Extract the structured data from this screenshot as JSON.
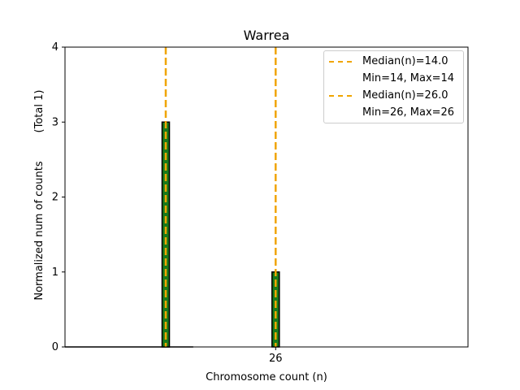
{
  "chart_data": {
    "type": "bar",
    "title": "Warrea",
    "xlabel": "Chromosome count (n)",
    "ylabel": "Normalized num of counts",
    "ylabel_note": "(Total 1)",
    "ylim": [
      0,
      4
    ],
    "xlim": [
      3,
      47
    ],
    "yticks": [
      0,
      1,
      2,
      3,
      4
    ],
    "xticks": [
      26
    ],
    "grid": false,
    "legend_position": "top-right",
    "bars": [
      {
        "x": 14,
        "value": 3
      },
      {
        "x": 26,
        "value": 1
      }
    ],
    "bar_color": "#1a7a1a",
    "bar_edge_color": "#000000",
    "baseline_segment": {
      "x_start": 3,
      "x_end": 17
    },
    "median_lines": [
      {
        "x": 14,
        "color": "#f0a500"
      },
      {
        "x": 26,
        "color": "#f0a500"
      }
    ],
    "legend": [
      {
        "label": "Median(n)=14.0",
        "has_line": true,
        "color": "#f0a500"
      },
      {
        "label": "Min=14, Max=14",
        "has_line": false
      },
      {
        "label": "Median(n)=26.0",
        "has_line": true,
        "color": "#f0a500"
      },
      {
        "label": "Min=26, Max=26",
        "has_line": false
      }
    ]
  }
}
